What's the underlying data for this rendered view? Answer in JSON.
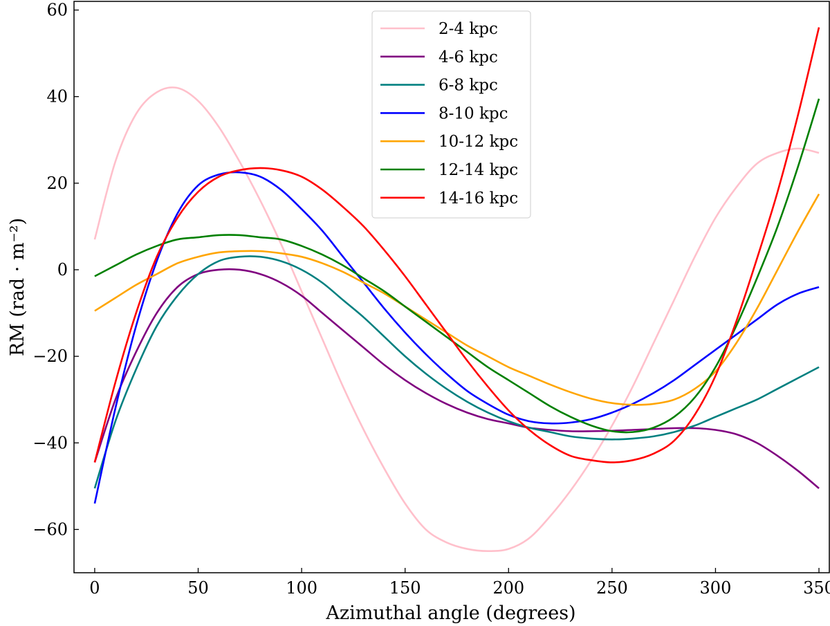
{
  "chart_data": {
    "type": "line",
    "title": "",
    "xlabel": "Azimuthal angle (degrees)",
    "ylabel": "RM (rad · m⁻²)",
    "xlim": [
      -10,
      355
    ],
    "ylim": [
      -70,
      62
    ],
    "grid": false,
    "legend_position": "top-center",
    "xticks": [
      0,
      50,
      100,
      150,
      200,
      250,
      300,
      350
    ],
    "xtick_labels": [
      "0",
      "50",
      "100",
      "150",
      "200",
      "250",
      "300",
      "350"
    ],
    "yticks": [
      -60,
      -40,
      -20,
      0,
      20,
      40,
      60
    ],
    "ytick_labels": [
      "−60",
      "−40",
      "−20",
      "0",
      "20",
      "40",
      "60"
    ],
    "x": [
      0,
      10,
      20,
      30,
      40,
      50,
      60,
      70,
      80,
      90,
      100,
      110,
      120,
      130,
      140,
      150,
      160,
      170,
      180,
      190,
      200,
      210,
      220,
      230,
      240,
      250,
      260,
      270,
      280,
      290,
      300,
      310,
      320,
      330,
      340,
      350
    ],
    "series": [
      {
        "name": "2-4 kpc",
        "color": "#ffc0cb",
        "values": [
          7,
          25,
          36,
          41,
          42,
          39,
          33,
          25,
          16,
          6,
          -5,
          -16,
          -27,
          -37,
          -46,
          -54,
          -60,
          -63,
          -64.5,
          -65,
          -64.5,
          -62,
          -57,
          -51,
          -44,
          -36,
          -27,
          -17,
          -7,
          3,
          12,
          19,
          24.5,
          27,
          28,
          27
        ]
      },
      {
        "name": "4-6 kpc",
        "color": "#800080",
        "values": [
          -44.5,
          -30,
          -19,
          -10,
          -4,
          -1,
          0,
          0,
          -1,
          -3,
          -6,
          -10,
          -14,
          -18,
          -22,
          -25.5,
          -28.5,
          -31,
          -33,
          -34.5,
          -35.5,
          -36.5,
          -37,
          -37.3,
          -37.3,
          -37.2,
          -37,
          -36.8,
          -36.6,
          -36.6,
          -37,
          -38,
          -40,
          -43,
          -46.5,
          -50.5
        ]
      },
      {
        "name": "6-8 kpc",
        "color": "#008080",
        "values": [
          -50.5,
          -35,
          -23,
          -13,
          -6,
          -1,
          2,
          3,
          3,
          2,
          0,
          -3,
          -7,
          -11,
          -15.5,
          -20,
          -24,
          -27.5,
          -30.5,
          -33,
          -35,
          -36.5,
          -37.5,
          -38.5,
          -39,
          -39.2,
          -39,
          -38.5,
          -37.5,
          -36,
          -34,
          -32,
          -30,
          -27.5,
          -25,
          -22.5
        ]
      },
      {
        "name": "8-10 kpc",
        "color": "#0000ff",
        "values": [
          -54,
          -32,
          -13,
          2,
          13,
          19.5,
          22,
          22.5,
          21.5,
          18.5,
          14,
          9,
          3,
          -3,
          -9,
          -14.5,
          -19.5,
          -24,
          -28,
          -31,
          -33.5,
          -35,
          -35.5,
          -35.3,
          -34.5,
          -33,
          -31,
          -28.5,
          -25.5,
          -22,
          -18.5,
          -15,
          -11.5,
          -8,
          -5.5,
          -4
        ]
      },
      {
        "name": "10-12 kpc",
        "color": "#ffa500",
        "values": [
          -9.5,
          -6.5,
          -3.5,
          -1,
          1.5,
          3,
          4,
          4.3,
          4.3,
          3.8,
          3,
          1.5,
          -0.5,
          -3,
          -5.5,
          -8.5,
          -11.5,
          -14.5,
          -17.5,
          -20,
          -22.5,
          -24.5,
          -26.5,
          -28.3,
          -29.8,
          -30.8,
          -31.2,
          -31,
          -30,
          -27.5,
          -23.5,
          -17,
          -9,
          0,
          9,
          17.5
        ]
      },
      {
        "name": "12-14 kpc",
        "color": "#008000",
        "values": [
          -1.5,
          1,
          3.5,
          5.5,
          7,
          7.5,
          8,
          8,
          7.5,
          7,
          5.5,
          3.5,
          1,
          -2,
          -5,
          -8.5,
          -12,
          -15.5,
          -19,
          -22.5,
          -25.5,
          -28.5,
          -31.5,
          -34,
          -36,
          -37.3,
          -37.5,
          -36.5,
          -34,
          -29.5,
          -22.5,
          -13,
          -2,
          10,
          24,
          39.5
        ]
      },
      {
        "name": "14-16 kpc",
        "color": "#ff0000",
        "values": [
          -44.5,
          -26,
          -10,
          3,
          12,
          18,
          21.5,
          23,
          23.5,
          23,
          21.5,
          18.5,
          14.5,
          10,
          4.5,
          -1.5,
          -8,
          -14.5,
          -21,
          -27,
          -32.5,
          -37,
          -40.5,
          -43,
          -44,
          -44.5,
          -44,
          -42.5,
          -39.5,
          -33.5,
          -24.5,
          -12,
          2.5,
          18,
          36,
          56
        ]
      }
    ]
  }
}
